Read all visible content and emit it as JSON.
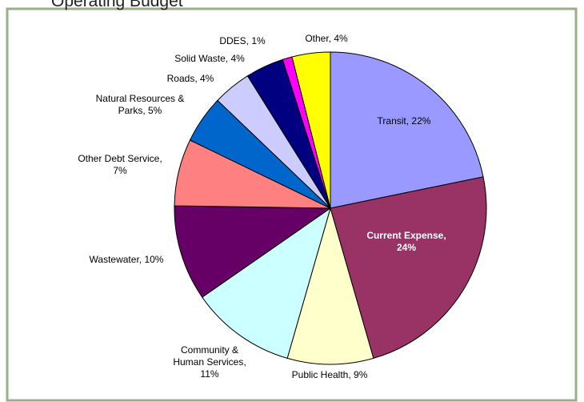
{
  "chart_data": {
    "type": "pie",
    "title": "Operating Budget",
    "labels": [
      [
        "Transit, 22%"
      ],
      [
        "Current Expense,",
        "24%"
      ],
      [
        "Public Health, 9%"
      ],
      [
        "Community &",
        "Human Services,",
        "11%"
      ],
      [
        "Wastewater, 10%"
      ],
      [
        "Other Debt Service,",
        "7%"
      ],
      [
        "Natural Resources &",
        "Parks, 5%"
      ],
      [
        "Roads, 4%"
      ],
      [
        "Solid Waste, 4%"
      ],
      [
        "DDES, 1%"
      ],
      [
        "Other, 4%"
      ]
    ],
    "values": [
      22,
      24,
      9,
      11,
      10,
      7,
      5,
      4,
      4,
      1,
      4
    ],
    "colors": [
      "#9999ff",
      "#993366",
      "#ffffcc",
      "#ccffff",
      "#660066",
      "#ff8080",
      "#0066cc",
      "#ccccff",
      "#000080",
      "#ff00ff",
      "#ffff00"
    ]
  }
}
